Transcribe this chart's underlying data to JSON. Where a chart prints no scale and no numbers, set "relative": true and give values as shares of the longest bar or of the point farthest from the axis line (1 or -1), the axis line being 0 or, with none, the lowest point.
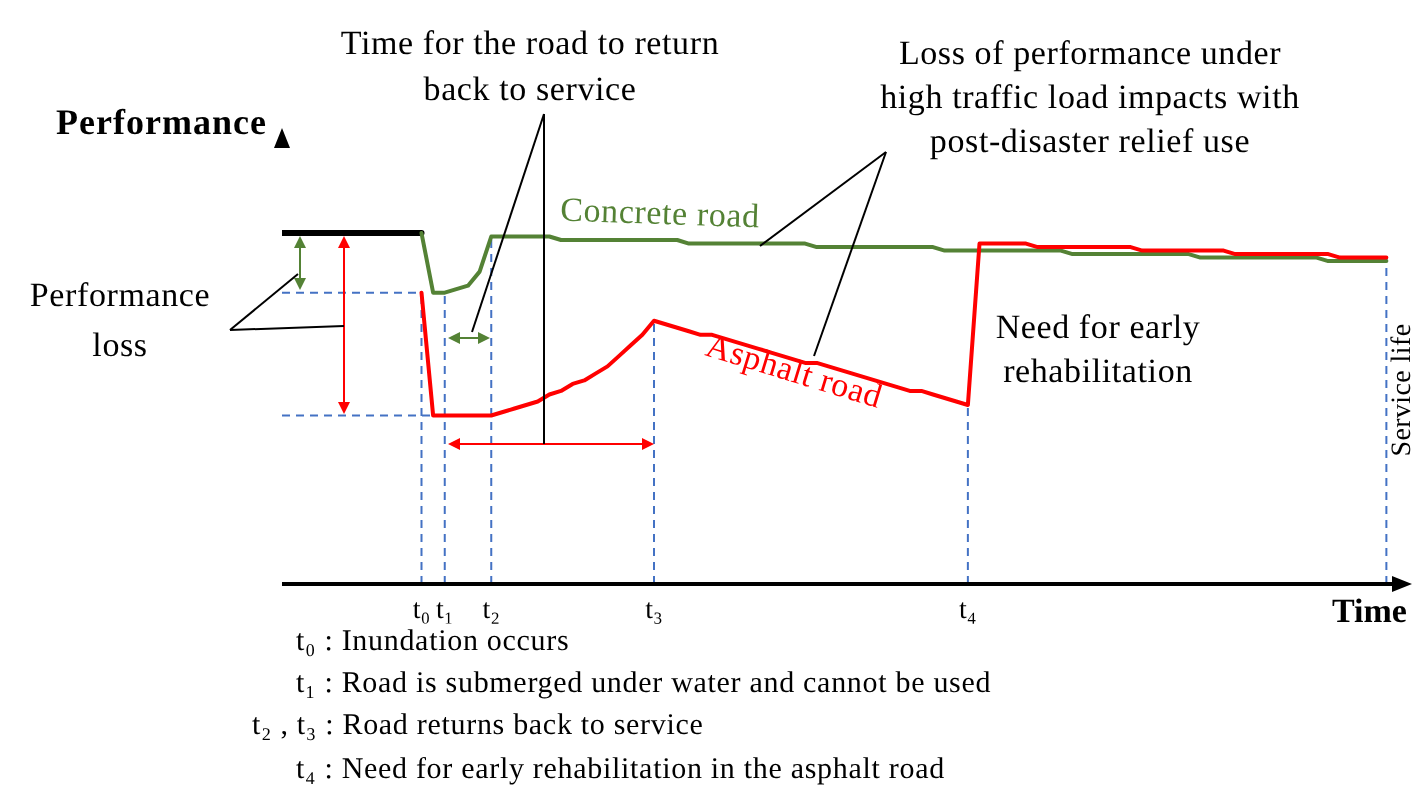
{
  "chart_data": {
    "type": "line",
    "xlabel": "Time",
    "ylabel": "Performance",
    "relative": true,
    "categories": [
      null,
      null,
      null,
      null,
      null,
      null,
      null,
      null,
      null,
      null,
      null,
      null,
      "t₀",
      null,
      "t₁",
      null,
      null,
      null,
      "t₂",
      null,
      null,
      null,
      null,
      null,
      null,
      null,
      null,
      null,
      null,
      null,
      null,
      null,
      "t₃",
      null,
      null,
      null,
      null,
      null,
      null,
      null,
      null,
      null,
      null,
      null,
      null,
      null,
      null,
      null,
      null,
      null,
      null,
      null,
      null,
      null,
      null,
      null,
      null,
      null,
      null,
      "t₄",
      null,
      null,
      null,
      null,
      null,
      null,
      null,
      null,
      null,
      null,
      null,
      null,
      null,
      null,
      null,
      null,
      null,
      null,
      null,
      null,
      null,
      null,
      null,
      null,
      null,
      null,
      null,
      null,
      null,
      null,
      null,
      null,
      null,
      null,
      null,
      null,
      null
    ],
    "series": [
      {
        "color": "#000000",
        "values": [
          1,
          1,
          1,
          1,
          1,
          1,
          1,
          1,
          1,
          1,
          1,
          1,
          1,
          null,
          null,
          null,
          null,
          null,
          null,
          null,
          null,
          null,
          null,
          null,
          null,
          null,
          null,
          null,
          null,
          null,
          null,
          null,
          null,
          null,
          null,
          null,
          null,
          null,
          null,
          null,
          null,
          null,
          null,
          null,
          null,
          null,
          null,
          null,
          null,
          null,
          null,
          null,
          null,
          null,
          null,
          null,
          null,
          null,
          null,
          null,
          null,
          null,
          null,
          null,
          null,
          null,
          null,
          null,
          null,
          null,
          null,
          null,
          null,
          null,
          null,
          null,
          null,
          null,
          null,
          null,
          null,
          null,
          null,
          null,
          null,
          null,
          null,
          null,
          null,
          null,
          null,
          null,
          null,
          null,
          null,
          null,
          null
        ]
      },
      {
        "name": "Concrete road",
        "color": "#548235",
        "values": [
          null,
          null,
          null,
          null,
          null,
          null,
          null,
          null,
          null,
          null,
          null,
          null,
          1,
          0.83,
          0.83,
          0.84,
          0.85,
          0.89,
          0.99,
          0.99,
          0.99,
          0.99,
          0.99,
          0.99,
          0.98,
          0.98,
          0.98,
          0.98,
          0.98,
          0.98,
          0.98,
          0.98,
          0.98,
          0.98,
          0.98,
          0.97,
          0.97,
          0.97,
          0.97,
          0.97,
          0.97,
          0.97,
          0.97,
          0.97,
          0.97,
          0.97,
          0.96,
          0.96,
          0.96,
          0.96,
          0.96,
          0.96,
          0.96,
          0.96,
          0.96,
          0.96,
          0.96,
          0.95,
          0.95,
          0.95,
          0.95,
          0.95,
          0.95,
          0.95,
          0.95,
          0.95,
          0.95,
          0.95,
          0.94,
          0.94,
          0.94,
          0.94,
          0.94,
          0.94,
          0.94,
          0.94,
          0.94,
          0.94,
          0.94,
          0.93,
          0.93,
          0.93,
          0.93,
          0.93,
          0.93,
          0.93,
          0.93,
          0.93,
          0.93,
          0.93,
          0.92,
          0.92,
          0.92,
          0.92,
          0.92,
          0.92,
          null
        ]
      },
      {
        "name": "Asphalt road",
        "color": "#ff0000",
        "values": [
          null,
          null,
          null,
          null,
          null,
          null,
          null,
          null,
          null,
          null,
          null,
          null,
          0.83,
          0.48,
          0.48,
          0.48,
          0.48,
          0.48,
          0.48,
          0.49,
          0.5,
          0.51,
          0.52,
          0.54,
          0.55,
          0.57,
          0.58,
          0.6,
          0.62,
          0.65,
          0.68,
          0.71,
          0.75,
          0.74,
          0.73,
          0.72,
          0.71,
          0.71,
          0.7,
          0.69,
          0.68,
          0.67,
          0.66,
          0.65,
          0.64,
          0.63,
          0.63,
          0.62,
          0.61,
          0.6,
          0.59,
          0.58,
          0.57,
          0.56,
          0.55,
          0.55,
          0.54,
          0.53,
          0.52,
          0.51,
          0.97,
          0.97,
          0.97,
          0.97,
          0.97,
          0.96,
          0.96,
          0.96,
          0.96,
          0.96,
          0.96,
          0.96,
          0.96,
          0.96,
          0.95,
          0.95,
          0.95,
          0.95,
          0.95,
          0.95,
          0.95,
          0.95,
          0.94,
          0.94,
          0.94,
          0.94,
          0.94,
          0.94,
          0.94,
          0.94,
          0.94,
          0.93,
          0.93,
          0.93,
          0.93,
          0.93,
          null
        ]
      }
    ],
    "ref_lines": [
      {
        "axis": "x",
        "value": "t₀",
        "color": "#4472c4",
        "line_style": "dashed"
      },
      {
        "axis": "x",
        "value": "t₁",
        "color": "#4472c4",
        "line_style": "dashed"
      },
      {
        "axis": "x",
        "value": "t₂",
        "color": "#4472c4",
        "line_style": "dashed"
      },
      {
        "axis": "x",
        "value": "t₃",
        "color": "#4472c4",
        "line_style": "dashed"
      },
      {
        "axis": "x",
        "value": "t₄",
        "color": "#4472c4",
        "line_style": "dashed"
      },
      {
        "axis": "y",
        "value": 0.83,
        "color": "#4472c4",
        "line_style": "dashed"
      },
      {
        "axis": "y",
        "value": 0.48,
        "color": "#4472c4",
        "line_style": "dashed"
      }
    ],
    "annotations": [
      "Time for the road to return back to service",
      "Loss of performance under high traffic load impacts with post-disaster relief use",
      "Performance loss",
      "Need for early rehabilitation",
      "t₀ : Inundation occurs",
      "t₁ : Road is submerged under water and cannot be used",
      "t₂ , t₃ : Road returns back to service",
      "t₄ : Need for early rehabilitation in the asphalt road",
      "Service life"
    ],
    "marker": "none",
    "tick_labels": "x"
  }
}
